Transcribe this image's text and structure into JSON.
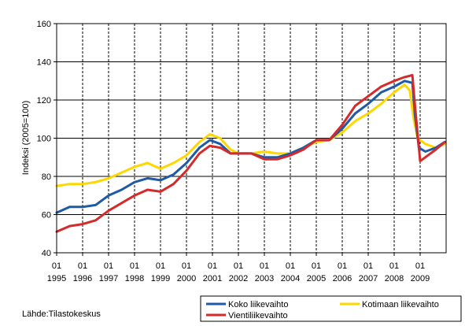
{
  "chart_data": {
    "type": "line",
    "title": "",
    "ylabel": "Indeksi (2005=100)",
    "ylim": [
      40,
      160
    ],
    "yticks": [
      40,
      60,
      80,
      100,
      120,
      140,
      160
    ],
    "xlim": [
      1995.0,
      2010.0
    ],
    "xtick_top": "01",
    "xticks": [
      "1995",
      "1996",
      "1997",
      "1998",
      "1999",
      "2000",
      "2001",
      "2002",
      "2003",
      "2004",
      "2005",
      "2006",
      "2007",
      "2008",
      "2009"
    ],
    "grid": "horizontal solid, vertical dashed",
    "legend_position": "bottom-right",
    "source": "Lähde:Tilastokeskus",
    "colors": {
      "koko": "#1f5aa6",
      "kotimaan": "#ffd700",
      "vienti": "#d42a2a"
    },
    "series": [
      {
        "name": "Koko liikevaihto",
        "key": "koko",
        "points": [
          [
            1995.0,
            61
          ],
          [
            1995.5,
            64
          ],
          [
            1996.0,
            64
          ],
          [
            1996.5,
            65
          ],
          [
            1997.0,
            70
          ],
          [
            1997.5,
            73
          ],
          [
            1998.0,
            77
          ],
          [
            1998.5,
            79
          ],
          [
            1999.0,
            78
          ],
          [
            1999.5,
            81
          ],
          [
            2000.0,
            87
          ],
          [
            2000.5,
            95
          ],
          [
            2000.9,
            99
          ],
          [
            2001.3,
            97
          ],
          [
            2001.7,
            92
          ],
          [
            2002.0,
            92
          ],
          [
            2002.5,
            92
          ],
          [
            2003.0,
            90
          ],
          [
            2003.5,
            90
          ],
          [
            2004.0,
            92
          ],
          [
            2004.5,
            95
          ],
          [
            2005.0,
            99
          ],
          [
            2005.5,
            99
          ],
          [
            2006.0,
            105
          ],
          [
            2006.5,
            113
          ],
          [
            2007.0,
            118
          ],
          [
            2007.5,
            124
          ],
          [
            2008.0,
            127
          ],
          [
            2008.4,
            130
          ],
          [
            2008.7,
            129
          ],
          [
            2008.8,
            112
          ],
          [
            2008.95,
            95
          ],
          [
            2009.2,
            93
          ],
          [
            2009.6,
            95
          ],
          [
            2009.95,
            98
          ]
        ]
      },
      {
        "name": "Kotimaan liikevaihto",
        "key": "kotimaan",
        "points": [
          [
            1995.0,
            75
          ],
          [
            1995.5,
            76
          ],
          [
            1996.0,
            76
          ],
          [
            1996.5,
            77
          ],
          [
            1997.0,
            79
          ],
          [
            1997.5,
            82
          ],
          [
            1998.0,
            85
          ],
          [
            1998.5,
            87
          ],
          [
            1999.0,
            84
          ],
          [
            1999.5,
            87
          ],
          [
            2000.0,
            91
          ],
          [
            2000.5,
            98
          ],
          [
            2000.9,
            102
          ],
          [
            2001.3,
            100
          ],
          [
            2001.7,
            94
          ],
          [
            2002.0,
            92
          ],
          [
            2002.5,
            92
          ],
          [
            2003.0,
            93
          ],
          [
            2003.5,
            92
          ],
          [
            2004.0,
            92
          ],
          [
            2004.5,
            95
          ],
          [
            2005.0,
            98
          ],
          [
            2005.5,
            99
          ],
          [
            2006.0,
            103
          ],
          [
            2006.5,
            109
          ],
          [
            2007.0,
            113
          ],
          [
            2007.5,
            118
          ],
          [
            2008.0,
            124
          ],
          [
            2008.4,
            128
          ],
          [
            2008.6,
            125
          ],
          [
            2008.75,
            110
          ],
          [
            2008.9,
            100
          ],
          [
            2009.2,
            97
          ],
          [
            2009.6,
            95
          ],
          [
            2009.95,
            97
          ]
        ]
      },
      {
        "name": "Vientiliikevaihto",
        "key": "vienti",
        "points": [
          [
            1995.0,
            51
          ],
          [
            1995.5,
            54
          ],
          [
            1996.0,
            55
          ],
          [
            1996.5,
            57
          ],
          [
            1997.0,
            62
          ],
          [
            1997.5,
            66
          ],
          [
            1998.0,
            70
          ],
          [
            1998.5,
            73
          ],
          [
            1999.0,
            72
          ],
          [
            1999.5,
            76
          ],
          [
            2000.0,
            83
          ],
          [
            2000.5,
            92
          ],
          [
            2000.9,
            96
          ],
          [
            2001.3,
            95
          ],
          [
            2001.7,
            92
          ],
          [
            2002.0,
            92
          ],
          [
            2002.5,
            92
          ],
          [
            2003.0,
            89
          ],
          [
            2003.5,
            89
          ],
          [
            2004.0,
            91
          ],
          [
            2004.5,
            94
          ],
          [
            2005.0,
            99
          ],
          [
            2005.5,
            99
          ],
          [
            2006.0,
            107
          ],
          [
            2006.5,
            117
          ],
          [
            2007.0,
            122
          ],
          [
            2007.5,
            127
          ],
          [
            2008.0,
            130
          ],
          [
            2008.4,
            132
          ],
          [
            2008.7,
            133
          ],
          [
            2008.8,
            117
          ],
          [
            2009.0,
            88
          ],
          [
            2009.3,
            91
          ],
          [
            2009.6,
            94
          ],
          [
            2009.95,
            98
          ]
        ]
      }
    ]
  }
}
